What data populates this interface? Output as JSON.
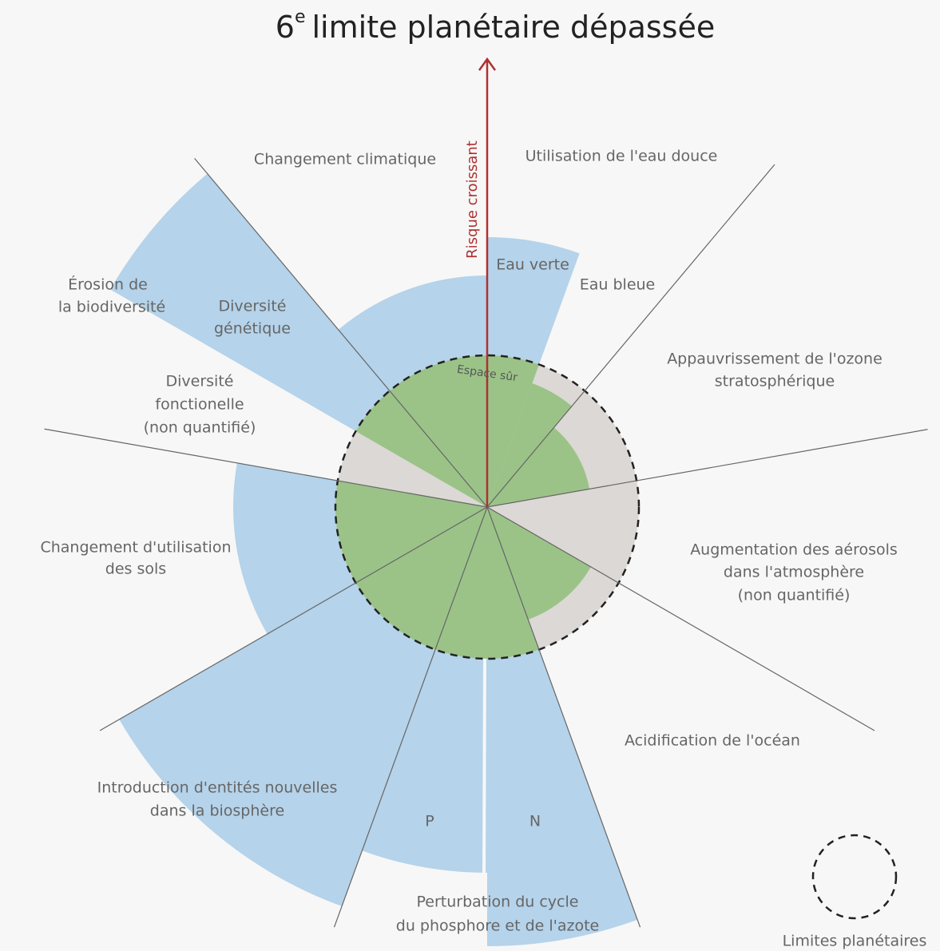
{
  "title": {
    "number": "6",
    "suffix": "e",
    "text": "limite planétaire dépassée"
  },
  "axis_label": "Risque croissant",
  "safe_space": "Espace sûr",
  "boundaries": [
    {
      "label": [
        "Changement climatique"
      ]
    },
    {
      "label": [
        "Utilisation de l'eau douce"
      ],
      "parts": [
        "Eau verte",
        "Eau bleue"
      ]
    },
    {
      "label": [
        "Appauvrissement de l'ozone",
        "stratosphérique"
      ]
    },
    {
      "label": [
        "Augmentation des aérosols",
        "dans l'atmosphère",
        "(non quantifié)"
      ]
    },
    {
      "label": [
        "Acidification de l'océan"
      ]
    },
    {
      "label": [
        "Perturbation du cycle",
        "du phosphore et de l'azote"
      ],
      "parts": [
        "P",
        "N"
      ]
    },
    {
      "label": [
        "Introduction d'entités nouvelles",
        "dans la biosphère"
      ]
    },
    {
      "label": [
        "Changement d'utilisation",
        "des sols"
      ]
    },
    {
      "label": [
        "Érosion de",
        "la biodiversité"
      ],
      "parts": [
        [
          "Diversité",
          "génétique"
        ],
        [
          "Diversité",
          "fonctionelle",
          "(non quantifié)"
        ]
      ]
    }
  ],
  "legend": "Limites planétaires"
}
